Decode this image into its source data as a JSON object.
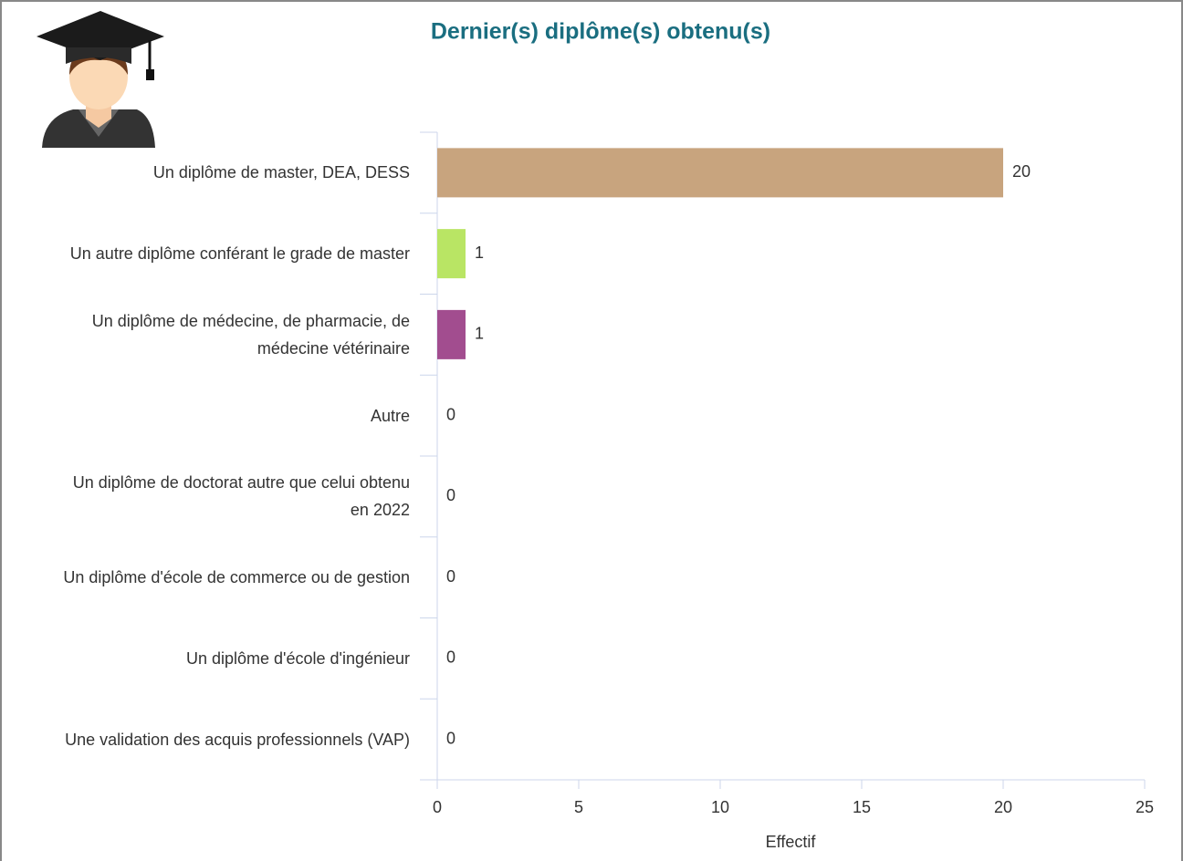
{
  "chart_data": {
    "type": "bar",
    "orientation": "horizontal",
    "title": "Dernier(s) diplôme(s) obtenu(s)",
    "categories": [
      "Un diplôme de master, DEA, DESS",
      "Un autre diplôme conférant le grade de master",
      "Un diplôme de médecine, de pharmacie, de médecine vétérinaire",
      "Autre",
      "Un diplôme de doctorat autre que celui obtenu en 2022",
      "Un diplôme d'école de commerce ou de gestion",
      "Un diplôme d'école d'ingénieur",
      "Une validation des acquis professionnels (VAP)"
    ],
    "values": [
      20,
      1,
      1,
      0,
      0,
      0,
      0,
      0
    ],
    "colors": [
      "#c8a47e",
      "#b9e564",
      "#a24d8f",
      null,
      null,
      null,
      null,
      null
    ],
    "xlabel": "Effectif",
    "xlim": [
      0,
      25
    ],
    "xticks": [
      0,
      5,
      10,
      15,
      20,
      25
    ]
  }
}
